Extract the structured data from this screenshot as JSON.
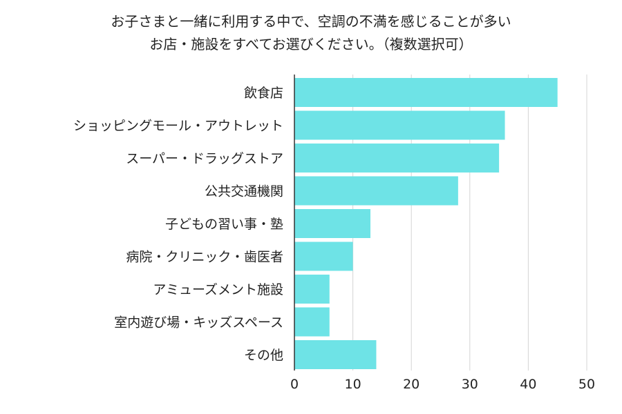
{
  "chart_data": {
    "type": "bar",
    "orientation": "horizontal",
    "title_lines": [
      "お子さまと一緒に利用する中で、空調の不満を感じることが多い",
      "お店・施設をすべてお選びください。（複数選択可）"
    ],
    "categories": [
      "飲食店",
      "ショッピングモール・アウトレット",
      "スーパー・ドラッグストア",
      "公共交通機関",
      "子どもの習い事・塾",
      "病院・クリニック・歯医者",
      "アミューズメント施設",
      "室内遊び場・キッズスペース",
      "その他"
    ],
    "values": [
      45,
      36,
      35,
      28,
      13,
      10,
      6,
      6,
      14
    ],
    "xlim": [
      0,
      50
    ],
    "xticks": [
      0,
      10,
      20,
      30,
      40,
      50
    ],
    "xlabel": "",
    "ylabel": "",
    "grid": true,
    "bar_color": "#6ee3e6"
  }
}
